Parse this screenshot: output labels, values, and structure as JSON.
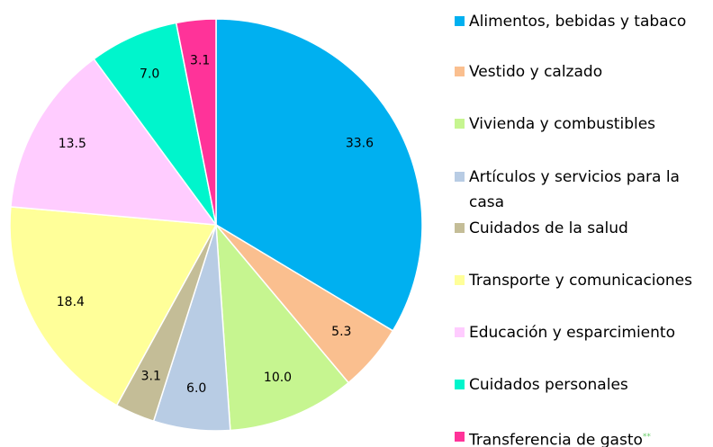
{
  "chart_data": {
    "type": "pie",
    "categories": [
      "Alimentos, bebidas y tabaco",
      "Vestido y calzado",
      "Vivienda y combustibles",
      "Artículos y servicios para la casa",
      "Cuidados de la salud",
      "Transporte y comunicaciones",
      "Educación y esparcimiento",
      "Cuidados personales",
      "Transferencia de gasto"
    ],
    "values": [
      33.6,
      5.3,
      10.0,
      6.0,
      3.1,
      18.4,
      13.5,
      7.0,
      3.1
    ],
    "value_labels": [
      "33.6",
      "5.3",
      "10.0",
      "6.0",
      "3.1",
      "18.4",
      "13.5",
      "7.0",
      "3.1"
    ],
    "colors": [
      "#00b0f0",
      "#fabf8f",
      "#c6f590",
      "#b8cce4",
      "#c4bd97",
      "#ffff99",
      "#ffccff",
      "#00f5cc",
      "#ff3399"
    ],
    "footnote_marker": "**",
    "legend": "right"
  }
}
